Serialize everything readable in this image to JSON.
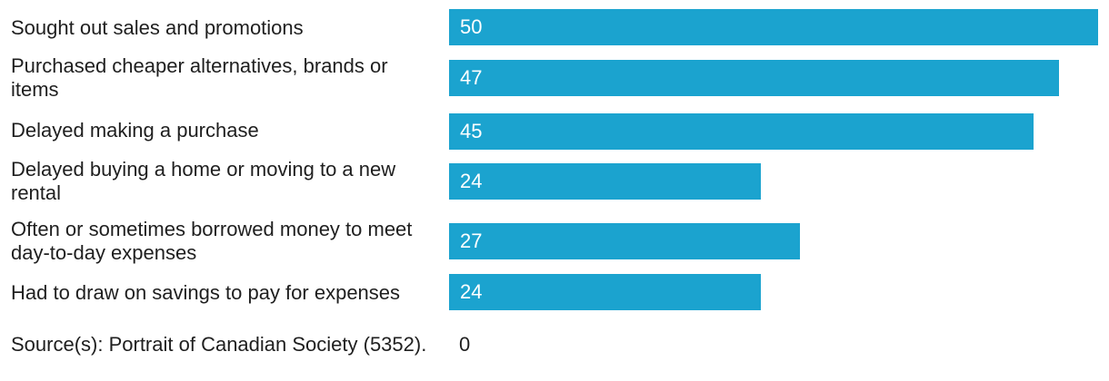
{
  "chart_data": {
    "type": "bar",
    "orientation": "horizontal",
    "categories": [
      "Sought out sales and promotions",
      "Purchased cheaper alternatives, brands or items",
      "Delayed making a purchase",
      "Delayed buying a home or moving to a new rental",
      "Often or sometimes borrowed money to meet day-to-day expenses",
      "Had to draw on savings to pay for expenses"
    ],
    "values": [
      50,
      47,
      45,
      24,
      27,
      24
    ],
    "xlim": [
      0,
      50
    ],
    "bar_color": "#1ba3cf",
    "value_label_color": "#ffffff",
    "grid": false,
    "legend": "none"
  },
  "footer": {
    "source": "Source(s): Portrait of Canadian Society (5352).",
    "value": "0"
  }
}
